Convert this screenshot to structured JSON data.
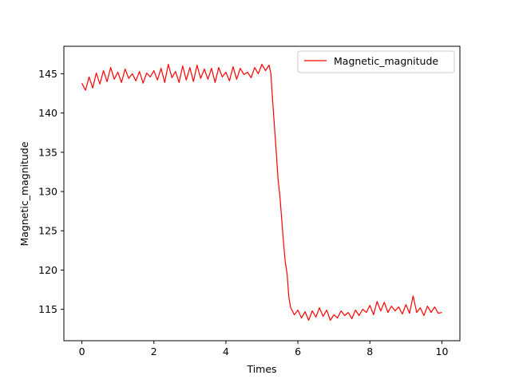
{
  "chart_data": {
    "type": "line",
    "title": "",
    "xlabel": "Times",
    "ylabel": "Magnetic_magnitude",
    "xlim": [
      -0.5,
      10.5
    ],
    "ylim": [
      111,
      148.5
    ],
    "xticks": [
      0,
      2,
      4,
      6,
      8,
      10
    ],
    "yticks": [
      115,
      120,
      125,
      130,
      135,
      140,
      145
    ],
    "grid": false,
    "legend_position": "top-right",
    "series": [
      {
        "name": "Magnetic_magnitude",
        "color": "#ff0000",
        "x": [
          0,
          0.1,
          0.2,
          0.3,
          0.4,
          0.5,
          0.6,
          0.7,
          0.8,
          0.9,
          1.0,
          1.1,
          1.2,
          1.3,
          1.4,
          1.5,
          1.6,
          1.7,
          1.8,
          1.9,
          2.0,
          2.1,
          2.2,
          2.3,
          2.4,
          2.5,
          2.6,
          2.7,
          2.8,
          2.9,
          3.0,
          3.1,
          3.2,
          3.3,
          3.4,
          3.5,
          3.6,
          3.7,
          3.8,
          3.9,
          4.0,
          4.1,
          4.2,
          4.3,
          4.4,
          4.5,
          4.6,
          4.7,
          4.8,
          4.9,
          5.0,
          5.1,
          5.2,
          5.25,
          5.3,
          5.35,
          5.4,
          5.45,
          5.5,
          5.55,
          5.6,
          5.65,
          5.7,
          5.75,
          5.8,
          5.9,
          6.0,
          6.1,
          6.2,
          6.3,
          6.4,
          6.5,
          6.6,
          6.7,
          6.8,
          6.9,
          7.0,
          7.1,
          7.2,
          7.3,
          7.4,
          7.5,
          7.6,
          7.7,
          7.8,
          7.9,
          8.0,
          8.1,
          8.2,
          8.3,
          8.4,
          8.5,
          8.6,
          8.7,
          8.8,
          8.9,
          9.0,
          9.1,
          9.2,
          9.3,
          9.4,
          9.5,
          9.6,
          9.7,
          9.8,
          9.9,
          10.0
        ],
        "y": [
          143.8,
          142.9,
          144.6,
          143.2,
          145.1,
          143.7,
          145.4,
          144.0,
          145.8,
          144.3,
          145.2,
          143.9,
          145.6,
          144.4,
          145.0,
          144.1,
          145.3,
          143.8,
          145.1,
          144.6,
          145.4,
          144.2,
          145.7,
          143.9,
          146.2,
          144.5,
          145.3,
          143.9,
          146.0,
          144.2,
          145.8,
          144.0,
          146.1,
          144.4,
          145.6,
          144.3,
          145.7,
          143.9,
          145.8,
          144.6,
          145.2,
          144.1,
          145.9,
          144.3,
          145.7,
          144.9,
          145.2,
          144.5,
          145.8,
          145.0,
          146.2,
          145.4,
          146.1,
          145.0,
          141.5,
          138.2,
          135.0,
          131.5,
          129.5,
          126.5,
          123.5,
          121.0,
          119.5,
          116.5,
          115.2,
          114.3,
          114.9,
          113.9,
          114.7,
          113.6,
          114.8,
          114.0,
          115.2,
          114.1,
          114.9,
          113.6,
          114.3,
          113.9,
          114.8,
          114.2,
          114.6,
          113.8,
          114.9,
          114.2,
          115.0,
          114.6,
          115.5,
          114.3,
          116.0,
          114.8,
          115.9,
          114.6,
          115.4,
          114.8,
          115.3,
          114.4,
          115.6,
          114.5,
          116.7,
          114.6,
          115.2,
          114.2,
          115.4,
          114.6,
          115.3,
          114.5,
          114.6
        ]
      }
    ]
  }
}
